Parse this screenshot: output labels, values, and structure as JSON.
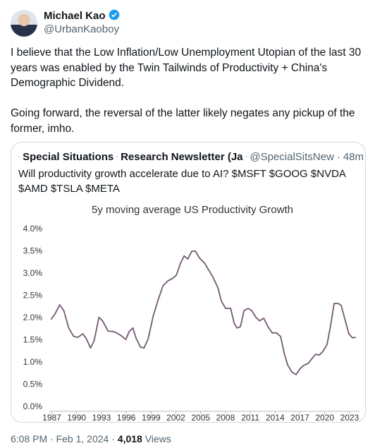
{
  "author": {
    "name": "Michael Kao",
    "handle": "@UrbanKaoboy"
  },
  "text": [
    "I believe that the Low Inflation/Low Unemployment Utopian of the last 30 years was enabled by the Twin Tailwinds of Productivity + China's Demographic Dividend.",
    "Going forward, the reversal of the latter likely negates any pickup of the former, imho."
  ],
  "quote": {
    "name_part1": "Special Situations",
    "name_part2": "Research Newsletter (Ja",
    "handle": "@SpecialSitsNew",
    "separator": "·",
    "time": "48m",
    "text": "Will productivity growth accelerate due to AI? $MSFT $GOOG $NVDA $AMD $TSLA $META"
  },
  "chart_data": {
    "type": "line",
    "title": "5y moving average US Productivity Growth",
    "x": [
      1986.9,
      1987.43,
      1987.94,
      1988.45,
      1989.04,
      1989.64,
      1990.15,
      1990.74,
      1991.17,
      1991.68,
      1992.11,
      1992.7,
      1993.13,
      1993.81,
      1994.4,
      1994.83,
      1995.43,
      1995.94,
      1996.36,
      1996.79,
      1997.21,
      1997.72,
      1998.15,
      1998.66,
      1999.26,
      1999.85,
      2000.45,
      2001.04,
      2001.64,
      2002.06,
      2002.57,
      2003.0,
      2003.43,
      2003.94,
      2004.36,
      2004.87,
      2005.47,
      2005.98,
      2006.49,
      2007.09,
      2007.51,
      2008.02,
      2008.62,
      2009.04,
      2009.38,
      2009.81,
      2010.23,
      2010.74,
      2011.17,
      2011.68,
      2012.11,
      2012.62,
      2013.13,
      2013.64,
      2014.15,
      2014.66,
      2015.09,
      2015.51,
      2016.02,
      2016.53,
      2017.04,
      2017.47,
      2017.98,
      2018.49,
      2018.91,
      2019.34,
      2019.77,
      2020.28,
      2020.7,
      2021.13,
      2021.64,
      2021.98,
      2022.49,
      2022.91,
      2023.34,
      2023.77
    ],
    "series": [
      {
        "name": "5y moving average",
        "color": "#735873",
        "values": [
          1.97,
          2.11,
          2.3,
          2.17,
          1.78,
          1.59,
          1.57,
          1.65,
          1.54,
          1.33,
          1.49,
          2.02,
          1.94,
          1.71,
          1.7,
          1.67,
          1.6,
          1.52,
          1.7,
          1.78,
          1.54,
          1.35,
          1.33,
          1.54,
          2.05,
          2.41,
          2.73,
          2.84,
          2.9,
          2.97,
          3.24,
          3.4,
          3.33,
          3.51,
          3.51,
          3.35,
          3.24,
          3.08,
          2.92,
          2.68,
          2.38,
          2.22,
          2.22,
          1.89,
          1.78,
          1.81,
          2.17,
          2.22,
          2.17,
          2.02,
          1.94,
          2.0,
          1.81,
          1.67,
          1.67,
          1.59,
          1.22,
          0.95,
          0.79,
          0.73,
          0.87,
          0.94,
          0.98,
          1.1,
          1.19,
          1.17,
          1.25,
          1.41,
          1.83,
          2.33,
          2.33,
          2.29,
          1.94,
          1.65,
          1.56,
          1.57
        ]
      }
    ],
    "xlim": [
      1986.7,
      2024.2
    ],
    "xticks": [
      1987,
      1990,
      1993,
      1996,
      1999,
      2002,
      2005,
      2008,
      2011,
      2014,
      2017,
      2020,
      2023
    ],
    "ylim": [
      0,
      4
    ],
    "yticks": [
      {
        "value": 0,
        "label": "0.0%"
      },
      {
        "value": 0.5,
        "label": "0.5%"
      },
      {
        "value": 1,
        "label": "1.0%"
      },
      {
        "value": 1.5,
        "label": "1.5%"
      },
      {
        "value": 2,
        "label": "2.0%"
      },
      {
        "value": 2.5,
        "label": "2.5%"
      },
      {
        "value": 3,
        "label": "3.0%"
      },
      {
        "value": 3.5,
        "label": "3.5%"
      },
      {
        "value": 4,
        "label": "4.0%"
      }
    ],
    "grid": false
  },
  "footer": {
    "time": "6:08 PM",
    "separator": "·",
    "date": "Feb 1, 2024",
    "views": "4,018",
    "views_label": "Views"
  }
}
